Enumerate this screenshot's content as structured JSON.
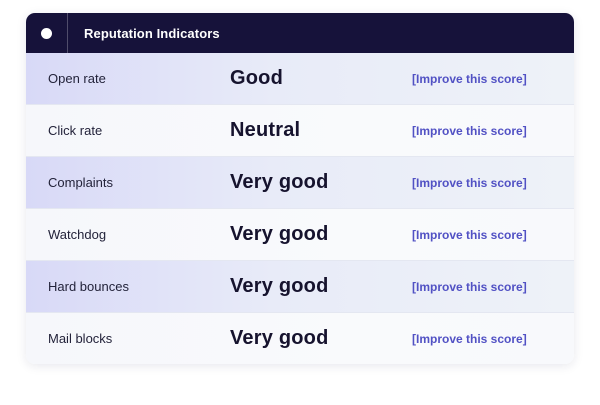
{
  "header": {
    "title": "Reputation Indicators"
  },
  "rows": [
    {
      "label": "Open rate",
      "value": "Good",
      "action": "[Improve this score]"
    },
    {
      "label": "Click rate",
      "value": "Neutral",
      "action": "[Improve this score]"
    },
    {
      "label": "Complaints",
      "value": "Very good",
      "action": "[Improve this score]"
    },
    {
      "label": "Watchdog",
      "value": "Very good",
      "action": "[Improve this score]"
    },
    {
      "label": "Hard bounces",
      "value": "Very good",
      "action": "[Improve this score]"
    },
    {
      "label": "Mail blocks",
      "value": "Very good",
      "action": "[Improve this score]"
    }
  ],
  "colors": {
    "header_bg": "#16123a",
    "link": "#5151c4",
    "divider": "#8c8fde"
  }
}
